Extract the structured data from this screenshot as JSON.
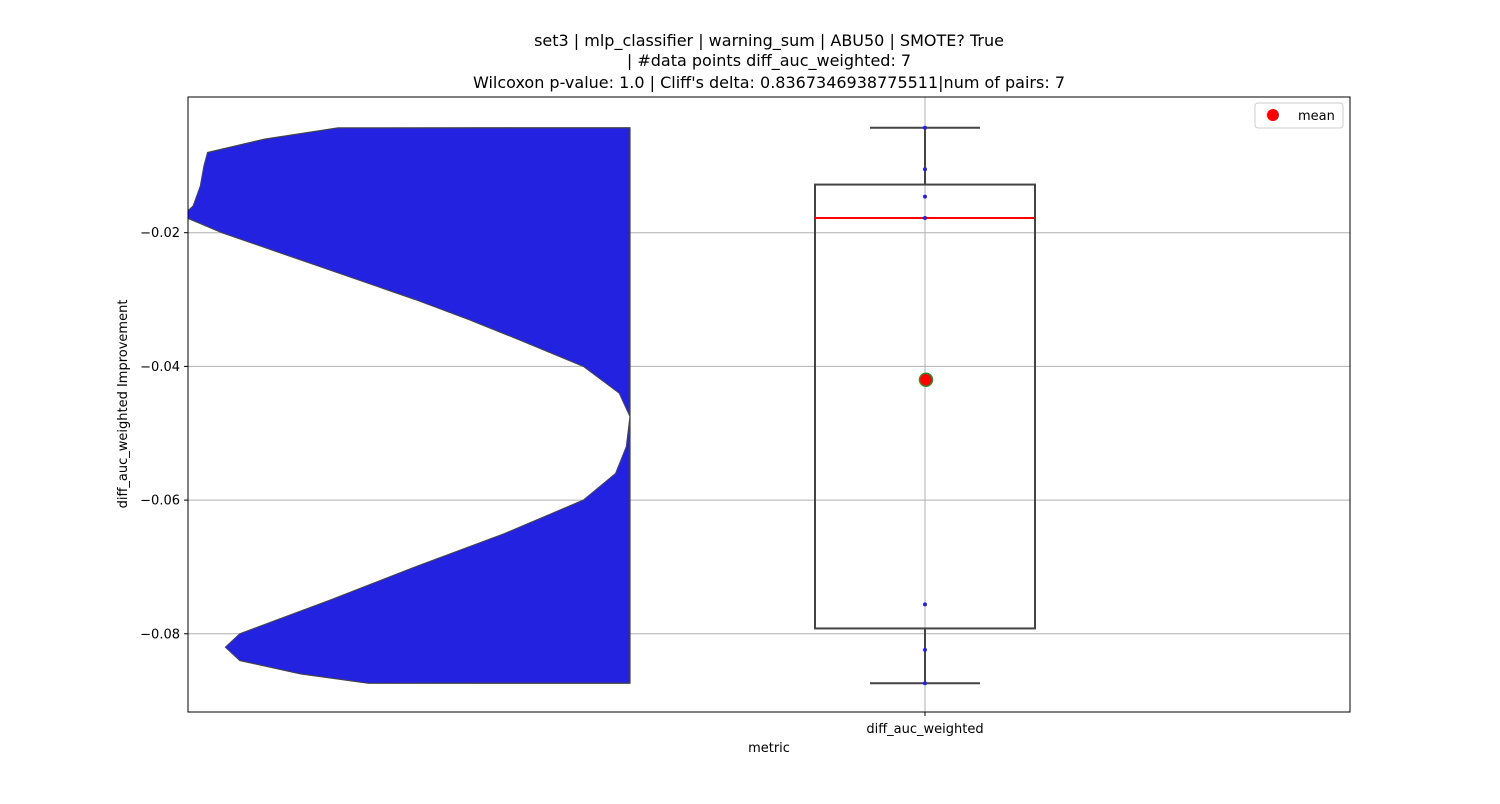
{
  "chart_data": {
    "type": "violin+box",
    "title_lines": [
      "set3 | mlp_classifier | warning_sum | ABU50 | SMOTE? True",
      "| #data points diff_auc_weighted: 7",
      "Wilcoxon p-value: 1.0 | Cliff's delta: 0.8367346938775511|num of pairs: 7"
    ],
    "xlabel": "metric",
    "ylabel": "diff_auc_weighted Improvement",
    "categories": [
      "diff_auc_weighted"
    ],
    "ylim": [
      -0.0917,
      0.0003
    ],
    "yticks": [
      -0.08,
      -0.06,
      -0.04,
      -0.02
    ],
    "ytick_labels": [
      "−0.08",
      "−0.06",
      "−0.04",
      "−0.02"
    ],
    "grid": true,
    "legend": {
      "position": "top-right",
      "entries": [
        {
          "label": "mean",
          "marker": "circle",
          "color": "#ff0000"
        }
      ]
    },
    "violin": {
      "color": "#2222e0",
      "edge_color": "#444444",
      "range": [
        -0.0874,
        -0.0043
      ],
      "profile": [
        [
          -0.0043,
          0.815
        ],
        [
          -0.006,
          1.02
        ],
        [
          -0.008,
          1.18
        ],
        [
          -0.01,
          1.19
        ],
        [
          -0.013,
          1.2
        ],
        [
          -0.016,
          1.22
        ],
        [
          -0.0175,
          1.25
        ],
        [
          -0.02,
          1.14
        ],
        [
          -0.025,
          0.87
        ],
        [
          -0.03,
          0.6
        ],
        [
          -0.033,
          0.45
        ],
        [
          -0.036,
          0.31
        ],
        [
          -0.04,
          0.13
        ],
        [
          -0.044,
          0.03
        ],
        [
          -0.0475,
          0.0
        ],
        [
          -0.052,
          0.01
        ],
        [
          -0.056,
          0.04
        ],
        [
          -0.06,
          0.13
        ],
        [
          -0.065,
          0.35
        ],
        [
          -0.07,
          0.6
        ],
        [
          -0.075,
          0.84
        ],
        [
          -0.078,
          0.99
        ],
        [
          -0.08,
          1.09
        ],
        [
          -0.082,
          1.13
        ],
        [
          -0.084,
          1.09
        ],
        [
          -0.086,
          0.92
        ],
        [
          -0.0874,
          0.73
        ]
      ]
    },
    "box": {
      "q1": -0.0792,
      "median": -0.0178,
      "q3": -0.0128,
      "whisker_low": -0.0874,
      "whisker_high": -0.0043,
      "mean": -0.042,
      "mean_color": "#ff0000",
      "mean_edge_color": "#2e8b2e",
      "median_color": "#ff0000",
      "line_color": "#444444"
    },
    "points": {
      "color": "#2222e0",
      "values": [
        -0.0043,
        -0.0105,
        -0.0146,
        -0.0178,
        -0.0756,
        -0.0824,
        -0.0874
      ]
    }
  }
}
